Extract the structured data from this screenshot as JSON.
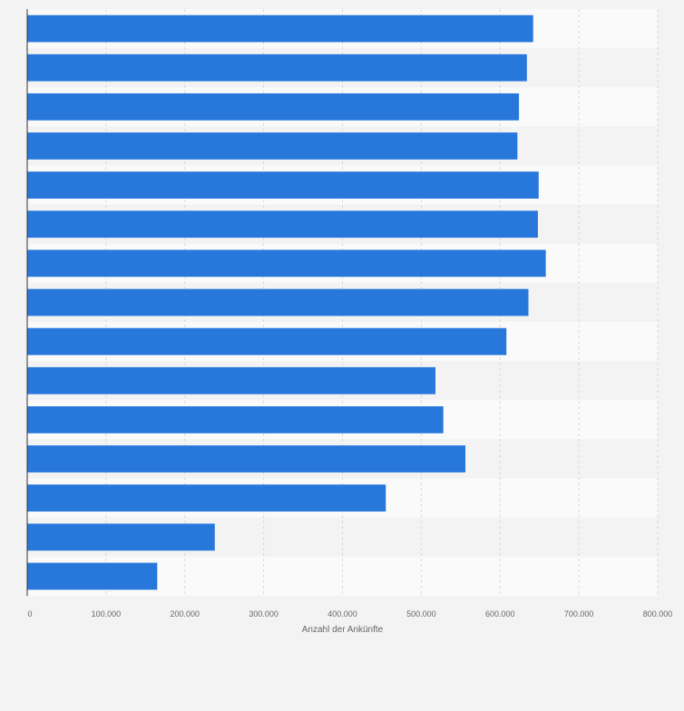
{
  "colors": {
    "bar": "#2878dc",
    "band_light": "#fafafa",
    "band_dark": "#f3f3f3",
    "grid": "#d9d9d9",
    "axis": "#333333",
    "tick_text": "#666666"
  },
  "chart_data": {
    "type": "bar",
    "orientation": "horizontal",
    "title": "",
    "xlabel": "Anzahl der Ankünfte",
    "ylabel": "",
    "xlim": [
      0,
      800000
    ],
    "x_ticks": [
      0,
      100000,
      200000,
      300000,
      400000,
      500000,
      600000,
      700000,
      800000
    ],
    "x_tick_labels": [
      "0",
      "100.000",
      "200.000",
      "300.000",
      "400.000",
      "500.000",
      "600.000",
      "700.000",
      "800.000"
    ],
    "grid": true,
    "categories": [
      "",
      "",
      "",
      "",
      "",
      "",
      "",
      "",
      "",
      "",
      "",
      "",
      "",
      "",
      ""
    ],
    "values": [
      642000,
      634000,
      624000,
      622000,
      649000,
      648000,
      658000,
      636000,
      608000,
      518000,
      528000,
      556000,
      455000,
      238000,
      165000
    ]
  }
}
